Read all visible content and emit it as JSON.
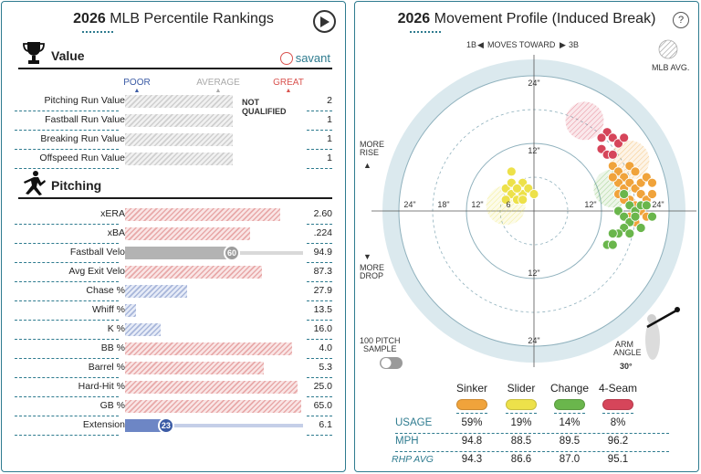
{
  "left_panel": {
    "title_year": "2026",
    "title_rest": "MLB Percentile Rankings",
    "brand": "savant",
    "scale": {
      "poor": "POOR",
      "average": "AVERAGE",
      "great": "GREAT"
    },
    "value_section": {
      "label": "Value",
      "rows": [
        {
          "label": "Pitching Run Value",
          "pct": 0,
          "value": "2",
          "style": "grey",
          "note": "NOT QUALIFIED"
        },
        {
          "label": "Fastball Run Value",
          "pct": 0,
          "value": "1",
          "style": "grey"
        },
        {
          "label": "Breaking Run Value",
          "pct": 0,
          "value": "1",
          "style": "grey"
        },
        {
          "label": "Offspeed Run Value",
          "pct": 0,
          "value": "1",
          "style": "grey"
        }
      ]
    },
    "pitching_section": {
      "label": "Pitching",
      "rows": [
        {
          "label": "xERA",
          "pct": 87,
          "value": "2.60",
          "style": "red"
        },
        {
          "label": "xBA",
          "pct": 70,
          "value": ".224",
          "style": "red"
        },
        {
          "label": "Fastball Velo",
          "pct": 60,
          "value": "94.9",
          "style": "grey-solid",
          "badge": "60"
        },
        {
          "label": "Avg Exit Velo",
          "pct": 77,
          "value": "87.3",
          "style": "red"
        },
        {
          "label": "Chase %",
          "pct": 35,
          "value": "27.9",
          "style": "blue"
        },
        {
          "label": "Whiff %",
          "pct": 6,
          "value": "13.5",
          "style": "blue"
        },
        {
          "label": "K %",
          "pct": 20,
          "value": "16.0",
          "style": "blue"
        },
        {
          "label": "BB %",
          "pct": 94,
          "value": "4.0",
          "style": "red"
        },
        {
          "label": "Barrel %",
          "pct": 78,
          "value": "5.3",
          "style": "red"
        },
        {
          "label": "Hard-Hit %",
          "pct": 97,
          "value": "25.0",
          "style": "red"
        },
        {
          "label": "GB %",
          "pct": 99,
          "value": "65.0",
          "style": "red"
        },
        {
          "label": "Extension",
          "pct": 23,
          "value": "6.1",
          "style": "blue-solid",
          "badge": "23"
        }
      ]
    },
    "colors": {
      "accent": "#2e7b8f",
      "great": "#d9534f",
      "poor": "#3b5ba5",
      "average": "#a9a9a9"
    }
  },
  "right_panel": {
    "title_year": "2026",
    "title_rest": "Movement Profile (Induced Break)",
    "help": "?",
    "moves_toward": {
      "left": "1B",
      "middle": "MOVES TOWARD",
      "right": "3B"
    },
    "mlb_avg": "MLB AVG.",
    "more_rise": [
      "MORE",
      "RISE"
    ],
    "more_drop": [
      "MORE",
      "DROP"
    ],
    "sample_toggle": [
      "100 PITCH",
      "SAMPLE"
    ],
    "arm_angle": {
      "label": [
        "ARM",
        "ANGLE"
      ],
      "value": "30°"
    },
    "axis_labels": {
      "top": [
        "24\"",
        "12\""
      ],
      "bottom": [
        "12\"",
        "24\""
      ],
      "left": [
        "24\"",
        "18\"",
        "12\"",
        "6"
      ],
      "right": [
        "12\"",
        "24\""
      ]
    },
    "chart_data": {
      "type": "scatter",
      "x_range": [
        -24,
        24
      ],
      "y_range": [
        -24,
        24
      ],
      "series": [
        {
          "name": "Sinker",
          "color": "#f0a33b",
          "points": [
            [
              14,
              8
            ],
            [
              15,
              7
            ],
            [
              16,
              6
            ],
            [
              17,
              8
            ],
            [
              18,
              7
            ],
            [
              15,
              5
            ],
            [
              16,
              4
            ],
            [
              17,
              5
            ],
            [
              18,
              4
            ],
            [
              19,
              5
            ],
            [
              20,
              6
            ],
            [
              19,
              3
            ],
            [
              17,
              2
            ],
            [
              18,
              1
            ],
            [
              20,
              2
            ],
            [
              21,
              3
            ],
            [
              19,
              0
            ],
            [
              17,
              -1
            ],
            [
              18,
              -2
            ],
            [
              20,
              -1
            ],
            [
              15,
              3
            ],
            [
              16,
              2
            ],
            [
              14,
              6
            ],
            [
              21,
              5
            ]
          ]
        },
        {
          "name": "Slider",
          "color": "#ede14a",
          "points": [
            [
              -5,
              4
            ],
            [
              -4,
              5
            ],
            [
              -3,
              4
            ],
            [
              -2,
              5
            ],
            [
              -4,
              3
            ],
            [
              -3,
              2
            ],
            [
              -2,
              3
            ],
            [
              -1,
              4
            ],
            [
              -5,
              2
            ],
            [
              0,
              3
            ],
            [
              -4,
              7
            ],
            [
              -3,
              4
            ],
            [
              -2,
              2
            ]
          ]
        },
        {
          "name": "Change",
          "color": "#6ab64c",
          "points": [
            [
              16,
              3
            ],
            [
              17,
              1
            ],
            [
              18,
              0
            ],
            [
              19,
              1
            ],
            [
              15,
              0
            ],
            [
              16,
              -1
            ],
            [
              17,
              -2
            ],
            [
              18,
              -1
            ],
            [
              19,
              -3
            ],
            [
              16,
              -3
            ],
            [
              15,
              -4
            ],
            [
              17,
              -4
            ],
            [
              14,
              -4
            ],
            [
              13,
              -6
            ],
            [
              14,
              -6
            ],
            [
              20,
              1
            ],
            [
              21,
              -1
            ]
          ]
        },
        {
          "name": "4-Seam",
          "color": "#d6455a",
          "points": [
            [
              13,
              14
            ],
            [
              12,
              13
            ],
            [
              14,
              13
            ],
            [
              12,
              11
            ],
            [
              13,
              10
            ],
            [
              15,
              12
            ],
            [
              16,
              13
            ],
            [
              14,
              10
            ]
          ]
        }
      ],
      "mlb_avg_regions": [
        {
          "name": "4-Seam",
          "cx": 9,
          "cy": 16,
          "r": 3.4,
          "color": "#d6455a"
        },
        {
          "name": "Sinker",
          "cx": 17,
          "cy": 9,
          "r": 3.5,
          "color": "#f0a33b"
        },
        {
          "name": "Slider",
          "cx": -5,
          "cy": 1,
          "r": 3.5,
          "color": "#ede14a"
        },
        {
          "name": "Change",
          "cx": 14,
          "cy": 4,
          "r": 3.4,
          "color": "#6ab64c"
        }
      ]
    },
    "pitch_table": {
      "pitches": [
        {
          "name": "Sinker",
          "color": "#f0a33b"
        },
        {
          "name": "Slider",
          "color": "#ede14a"
        },
        {
          "name": "Change",
          "color": "#6ab64c"
        },
        {
          "name": "4-Seam",
          "color": "#d6455a"
        }
      ],
      "rows": [
        {
          "label": "USAGE",
          "values": [
            "59%",
            "19%",
            "14%",
            "8%"
          ]
        },
        {
          "label": "MPH",
          "values": [
            "94.8",
            "88.5",
            "89.5",
            "96.2"
          ]
        },
        {
          "label": "RHP AVG",
          "values": [
            "94.3",
            "86.6",
            "87.0",
            "95.1"
          ]
        }
      ]
    }
  }
}
